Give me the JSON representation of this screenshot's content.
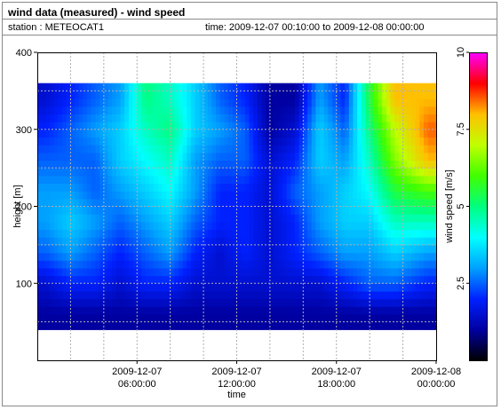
{
  "header": {
    "title": "wind data (measured) - wind speed",
    "station": "station : METEOCAT1",
    "time_range": "time: 2009-12-07 00:10:00 to 2009-12-08 00:00:00"
  },
  "chart_data": {
    "type": "heatmap",
    "title": "wind data (measured) - wind speed",
    "xlabel": "time",
    "ylabel": "height [m]",
    "colorbar_label": "wind speed [m/s]",
    "x_ticks": [
      {
        "l1": "2009-12-07",
        "l2": "06:00:00",
        "hour": 6
      },
      {
        "l1": "2009-12-07",
        "l2": "12:00:00",
        "hour": 12
      },
      {
        "l1": "2009-12-07",
        "l2": "18:00:00",
        "hour": 18
      },
      {
        "l1": "2009-12-08",
        "l2": "00:00:00",
        "hour": 24
      }
    ],
    "y_ticks": [
      100,
      200,
      300,
      400
    ],
    "ylim": [
      0,
      400
    ],
    "xlim_hours": [
      0,
      24
    ],
    "colorbar_ticks": [
      2.5,
      5,
      7.5,
      10
    ],
    "colorbar_range": [
      0,
      10
    ],
    "colorscale": [
      "#000000",
      "#0000a0",
      "#0020ff",
      "#00a0ff",
      "#00ffff",
      "#00ff80",
      "#40ff00",
      "#c0ff00",
      "#ffc000",
      "#ff0000",
      "#ff00ff"
    ],
    "height_range": [
      40,
      360
    ],
    "grid": true,
    "heights": [
      60,
      100,
      140,
      180,
      220,
      260,
      300,
      340
    ],
    "profile_hours": [
      0.5,
      2,
      3.5,
      5,
      6.5,
      8,
      9.5,
      11,
      12.5,
      14,
      15.5,
      17,
      18.5,
      20,
      21.5,
      23.5
    ],
    "profiles": [
      [
        1.0,
        1.5,
        2.5,
        3.0,
        3.0,
        2.5,
        2.0,
        1.5
      ],
      [
        1.0,
        2.0,
        3.0,
        3.5,
        3.0,
        2.5,
        2.5,
        2.0
      ],
      [
        1.0,
        2.0,
        2.5,
        3.0,
        2.5,
        2.5,
        3.0,
        2.5
      ],
      [
        1.0,
        1.5,
        2.0,
        2.5,
        3.0,
        3.5,
        3.5,
        3.0
      ],
      [
        1.0,
        2.0,
        2.5,
        3.0,
        3.5,
        4.0,
        4.5,
        5.0
      ],
      [
        1.0,
        2.0,
        3.0,
        3.5,
        4.0,
        4.5,
        5.0,
        4.5
      ],
      [
        1.0,
        1.5,
        2.0,
        2.5,
        3.0,
        3.0,
        3.5,
        3.5
      ],
      [
        1.0,
        1.5,
        1.5,
        2.0,
        2.0,
        2.5,
        3.0,
        2.5
      ],
      [
        1.0,
        1.5,
        2.0,
        2.0,
        2.0,
        2.5,
        2.5,
        2.0
      ],
      [
        1.0,
        1.5,
        1.5,
        1.5,
        1.5,
        1.5,
        1.0,
        1.0
      ],
      [
        1.0,
        1.5,
        2.0,
        2.0,
        2.5,
        2.0,
        1.5,
        1.0
      ],
      [
        1.0,
        1.5,
        2.5,
        3.0,
        3.0,
        3.5,
        3.5,
        3.0
      ],
      [
        1.0,
        2.0,
        3.0,
        3.5,
        3.5,
        3.0,
        2.5,
        2.0
      ],
      [
        1.0,
        2.5,
        3.0,
        3.5,
        4.0,
        4.5,
        5.0,
        5.5
      ],
      [
        1.0,
        2.5,
        3.5,
        4.5,
        5.5,
        6.5,
        7.0,
        8.0
      ],
      [
        1.0,
        2.0,
        3.0,
        4.5,
        6.0,
        8.0,
        8.5,
        8.0
      ]
    ]
  }
}
